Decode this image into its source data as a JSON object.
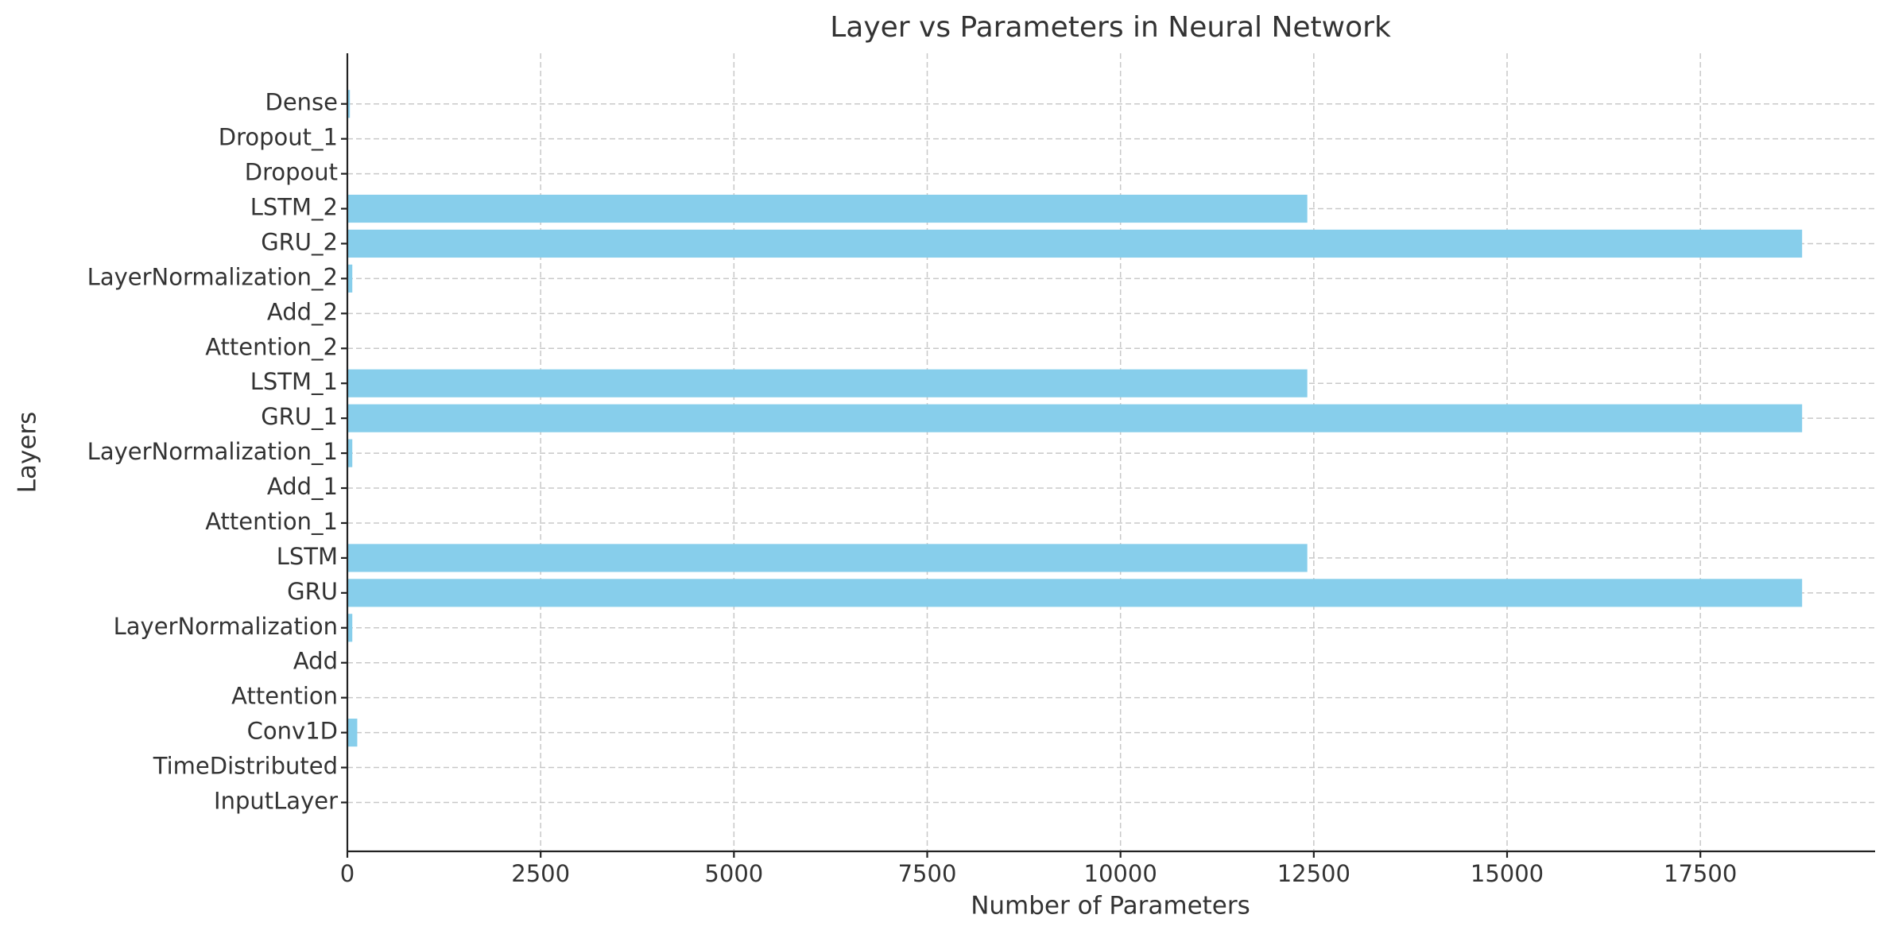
{
  "chart_data": {
    "type": "barh",
    "title": "Layer vs Parameters in Neural Network",
    "x_label": "Number of Parameters",
    "y_label": "Layers",
    "categories": [
      "InputLayer",
      "TimeDistributed",
      "Conv1D",
      "Attention",
      "Add",
      "LayerNormalization",
      "GRU",
      "LSTM",
      "Attention_1",
      "Add_1",
      "LayerNormalization_1",
      "GRU_1",
      "LSTM_1",
      "Attention_2",
      "Add_2",
      "LayerNormalization_2",
      "GRU_2",
      "LSTM_2",
      "Dropout",
      "Dropout_1",
      "Dense"
    ],
    "values": [
      0,
      0,
      128,
      0,
      0,
      64,
      18816,
      12416,
      0,
      0,
      64,
      18816,
      12416,
      0,
      0,
      64,
      18816,
      12416,
      0,
      0,
      33
    ],
    "color": "#87ceeb",
    "xlim": [
      0,
      19760
    ],
    "xticks": [
      0,
      2500,
      5000,
      7500,
      10000,
      12500,
      15000,
      17500
    ],
    "grid": true
  }
}
